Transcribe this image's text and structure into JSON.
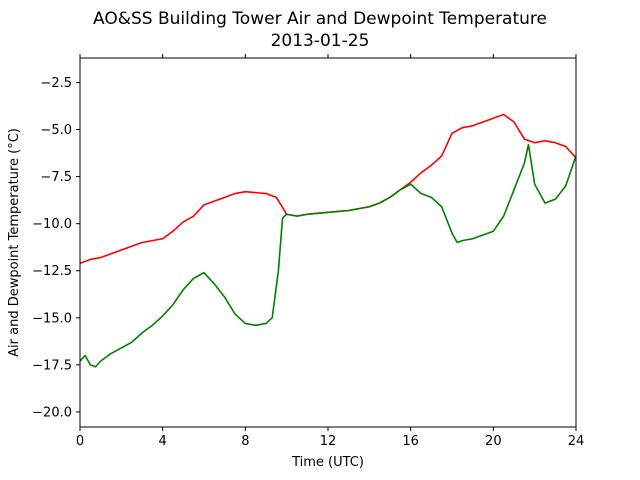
{
  "chart_data": {
    "type": "line",
    "title": "AO&SS Building Tower Air and Dewpoint Temperature",
    "subtitle": "2013-01-25",
    "xlabel": "Time (UTC)",
    "ylabel": "Air and Dewpoint Temperature (°C)",
    "xlim": [
      0,
      24
    ],
    "ylim": [
      -20.8,
      -1.2
    ],
    "xticks": [
      0,
      4,
      8,
      12,
      16,
      20,
      24
    ],
    "yticks": [
      -20.0,
      -17.5,
      -15.0,
      -12.5,
      -10.0,
      -7.5,
      -5.0,
      -2.5
    ],
    "ytick_labels": [
      "−20.0",
      "−17.5",
      "−15.0",
      "−12.5",
      "−10.0",
      "−7.5",
      "−5.0",
      "−2.5"
    ],
    "grid": false,
    "series": [
      {
        "color": "#ff0000",
        "x": [
          0,
          0.5,
          1,
          1.5,
          2,
          2.5,
          3,
          3.5,
          4,
          4.5,
          5,
          5.5,
          6,
          6.5,
          7,
          7.5,
          8,
          8.5,
          9,
          9.5,
          10,
          10.5,
          11,
          11.5,
          12,
          12.5,
          13,
          13.5,
          14,
          14.5,
          15,
          15.5,
          16,
          16.5,
          17,
          17.5,
          18,
          18.5,
          19,
          19.5,
          20,
          20.5,
          21,
          21.5,
          22,
          22.5,
          23,
          23.5,
          24
        ],
        "y": [
          -12.1,
          -11.9,
          -11.8,
          -11.6,
          -11.4,
          -11.2,
          -11.0,
          -10.9,
          -10.8,
          -10.4,
          -9.9,
          -9.6,
          -9.0,
          -8.8,
          -8.6,
          -8.4,
          -8.3,
          -8.35,
          -8.4,
          -8.6,
          -9.5,
          -9.6,
          -9.5,
          -9.45,
          -9.4,
          -9.35,
          -9.3,
          -9.2,
          -9.1,
          -8.9,
          -8.6,
          -8.2,
          -7.8,
          -7.3,
          -6.9,
          -6.4,
          -5.2,
          -4.9,
          -4.8,
          -4.6,
          -4.4,
          -4.2,
          -4.6,
          -5.5,
          -5.7,
          -5.6,
          -5.7,
          -5.9,
          -6.5
        ]
      },
      {
        "color": "#008000",
        "x": [
          0,
          0.25,
          0.5,
          0.75,
          1,
          1.5,
          2,
          2.5,
          3,
          3.5,
          4,
          4.5,
          5,
          5.5,
          6,
          6.5,
          7,
          7.5,
          8,
          8.5,
          9,
          9.3,
          9.6,
          9.8,
          10,
          10.5,
          11,
          11.5,
          12,
          12.5,
          13,
          13.5,
          14,
          14.5,
          15,
          15.5,
          16,
          16.5,
          17,
          17.5,
          18,
          18.25,
          18.5,
          19,
          19.5,
          20,
          20.5,
          21,
          21.5,
          21.7,
          22,
          22.5,
          23,
          23.5,
          24
        ],
        "y": [
          -17.3,
          -17.0,
          -17.5,
          -17.6,
          -17.3,
          -16.9,
          -16.6,
          -16.3,
          -15.8,
          -15.4,
          -14.9,
          -14.3,
          -13.5,
          -12.9,
          -12.6,
          -13.2,
          -13.9,
          -14.8,
          -15.3,
          -15.4,
          -15.3,
          -15.0,
          -12.5,
          -9.7,
          -9.5,
          -9.6,
          -9.5,
          -9.45,
          -9.4,
          -9.35,
          -9.3,
          -9.2,
          -9.1,
          -8.9,
          -8.6,
          -8.2,
          -7.9,
          -8.4,
          -8.6,
          -9.1,
          -10.5,
          -11.0,
          -10.9,
          -10.8,
          -10.6,
          -10.4,
          -9.6,
          -8.2,
          -6.8,
          -5.8,
          -7.9,
          -8.9,
          -8.7,
          -8.0,
          -6.4
        ]
      }
    ]
  }
}
